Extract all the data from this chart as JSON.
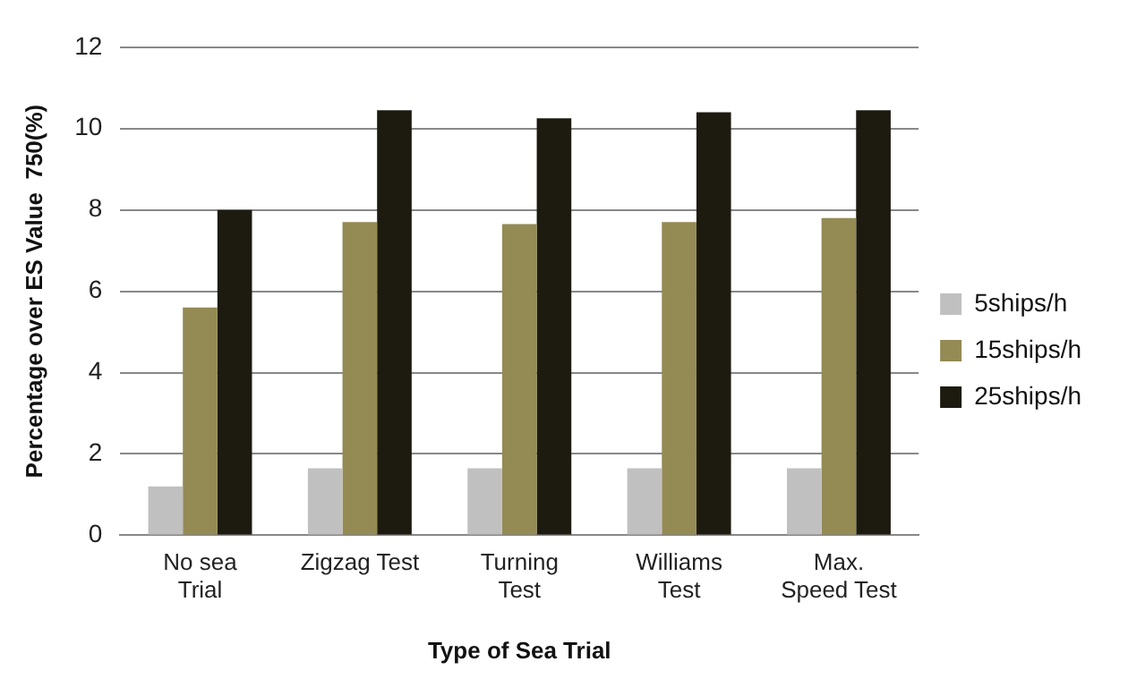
{
  "chart_data": {
    "type": "bar",
    "xlabel": "Type of Sea Trial",
    "ylabel": "Percentage over ES Value  750(%)",
    "categories": [
      "No sea\nTrial",
      "Zigzag Test",
      "Turning\nTest",
      "Williams\nTest",
      "Max.\nSpeed Test"
    ],
    "series": [
      {
        "name": "5ships/h",
        "color": "#c0c0c0",
        "values": [
          1.2,
          1.65,
          1.65,
          1.65,
          1.65
        ]
      },
      {
        "name": "15ships/h",
        "color": "#948a54",
        "values": [
          5.6,
          7.7,
          7.65,
          7.7,
          7.8
        ]
      },
      {
        "name": "25ships/h",
        "color": "#1d1b10",
        "values": [
          8.0,
          10.45,
          10.25,
          10.4,
          10.45
        ]
      }
    ],
    "ylim": [
      0,
      12
    ],
    "yticks": [
      0,
      2,
      4,
      6,
      8,
      10,
      12
    ],
    "grid": "y",
    "legend": "right"
  }
}
